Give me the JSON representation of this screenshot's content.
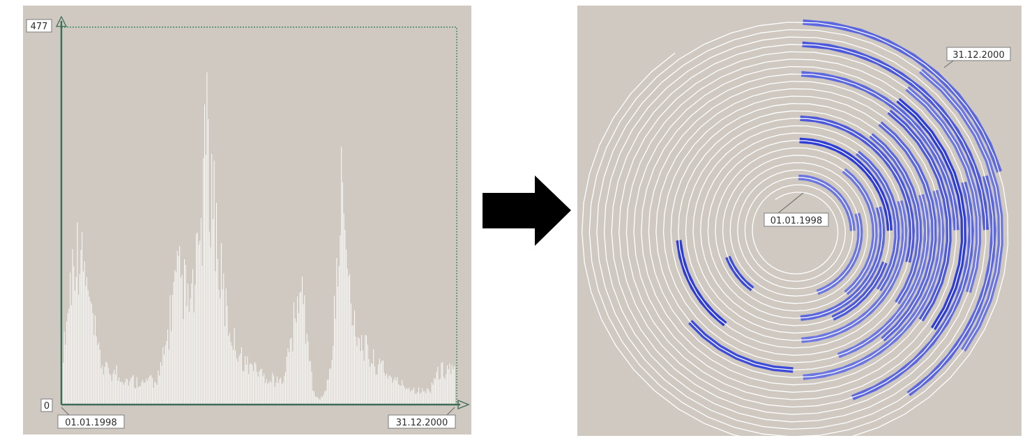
{
  "colors": {
    "panel_bg": "#cfc9c1",
    "axis": "#3c6b58",
    "frame_dotted": "#3f8a5a",
    "bars": "#ffffff",
    "spiral": "#ffffff",
    "highlight_light": "#b9bcef",
    "highlight_dark": "#1d2fd2",
    "label_bg": "#ffffff",
    "label_border": "#7a7a7a",
    "arrow": "#000000"
  },
  "icons": [
    "right-arrow-icon"
  ],
  "chart_data": [
    {
      "type": "bar",
      "title": "",
      "x_start": "01.01.1998",
      "x_end": "31.12.2000",
      "ylim": [
        0,
        477
      ],
      "y_tick_labels": [
        "0",
        "477"
      ],
      "x_tick_labels": [
        "01.01.1998",
        "31.12.2000"
      ],
      "grid": false,
      "bins_per_value": 2,
      "values_weekly": [
        95,
        130,
        160,
        200,
        230,
        255,
        250,
        260,
        225,
        215,
        180,
        160,
        135,
        112,
        92,
        78,
        66,
        58,
        54,
        58,
        50,
        48,
        54,
        43,
        46,
        40,
        43,
        38,
        36,
        40,
        33,
        37,
        38,
        34,
        32,
        38,
        36,
        40,
        33,
        42,
        48,
        55,
        75,
        95,
        118,
        150,
        175,
        188,
        200,
        205,
        185,
        190,
        160,
        165,
        175,
        180,
        220,
        260,
        298,
        380,
        470,
        365,
        360,
        340,
        290,
        228,
        205,
        180,
        160,
        135,
        120,
        112,
        100,
        92,
        83,
        75,
        70,
        63,
        66,
        58,
        70,
        53,
        55,
        50,
        45,
        47,
        42,
        38,
        43,
        38,
        35,
        36,
        46,
        60,
        75,
        90,
        112,
        130,
        150,
        185,
        175,
        165,
        125,
        90,
        55,
        25,
        10,
        10,
        10,
        14,
        22,
        35,
        58,
        95,
        148,
        198,
        260,
        385,
        270,
        235,
        190,
        165,
        140,
        128,
        112,
        102,
        96,
        88,
        80,
        74,
        70,
        65,
        64,
        58,
        66,
        54,
        48,
        46,
        42,
        38,
        36,
        35,
        32,
        30,
        28,
        27,
        26,
        24,
        23,
        22,
        21,
        21,
        20,
        22,
        24,
        34,
        44,
        48,
        52,
        55,
        54,
        58,
        60,
        56,
        52
      ]
    },
    {
      "type": "heatmap",
      "title": "",
      "layout": "spiral",
      "start_label": "01.01.1998",
      "end_label": "31.12.2000",
      "periods": 24,
      "segments_per_period": 45,
      "color_scale": [
        "#b9bcef",
        "#1d2fd2"
      ]
    }
  ]
}
